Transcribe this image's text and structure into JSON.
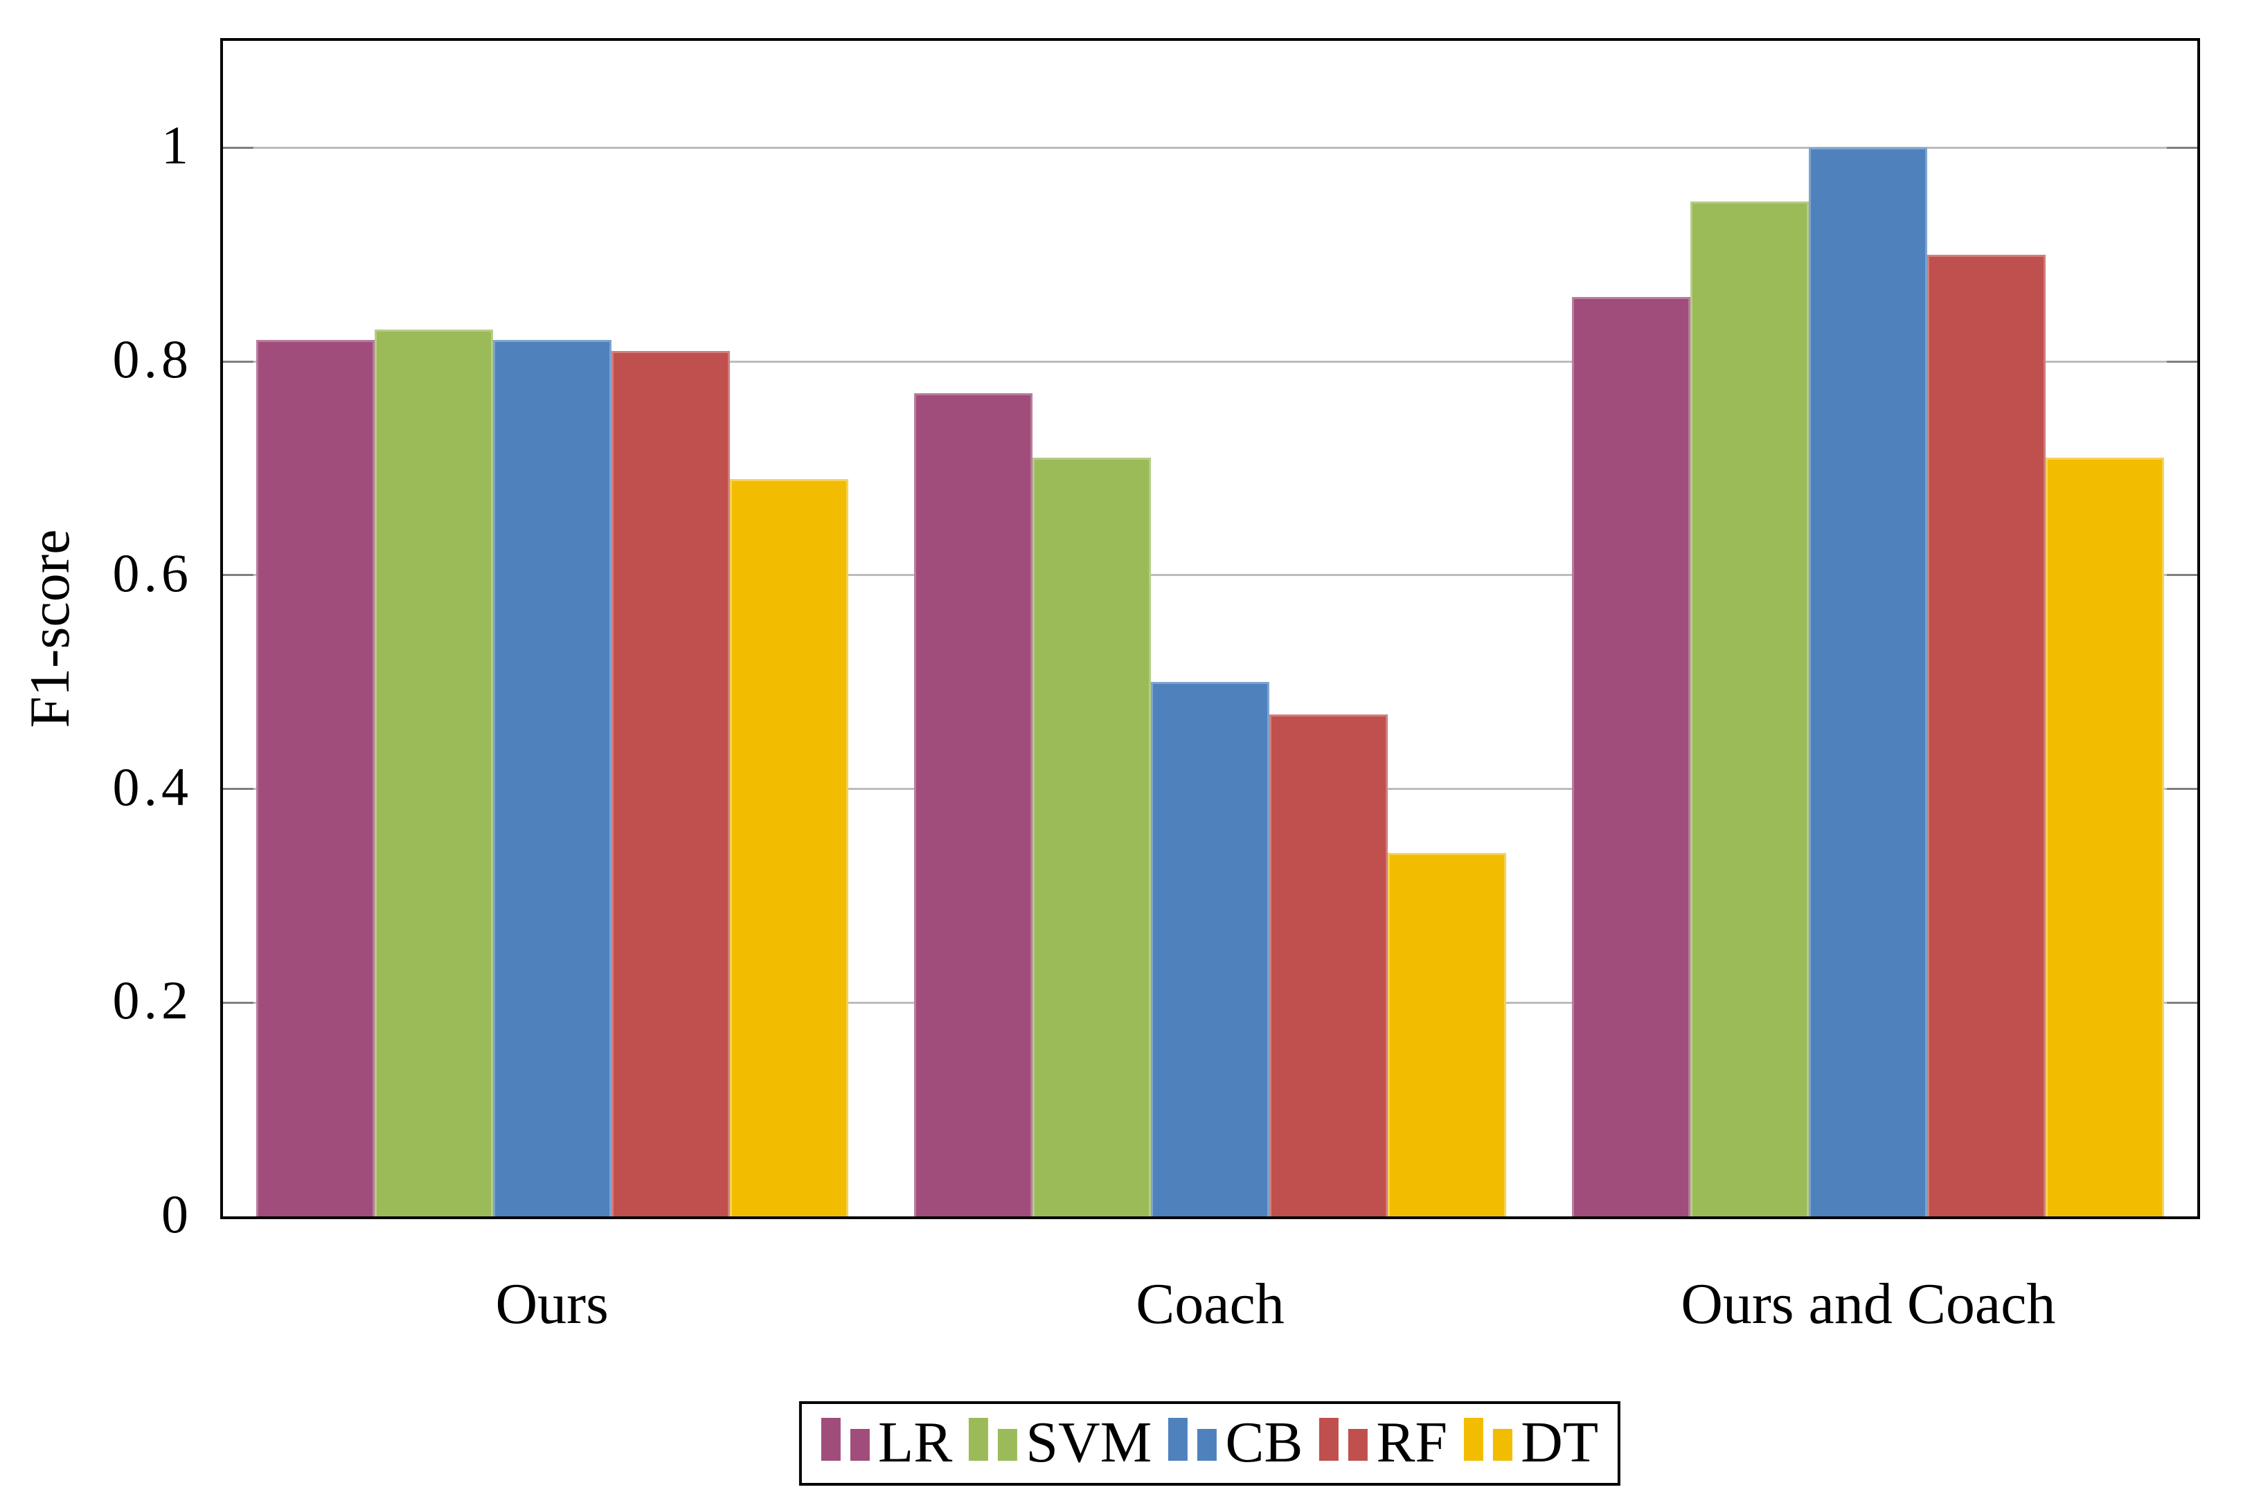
{
  "chart_data": {
    "type": "bar",
    "title": "",
    "xlabel": "",
    "ylabel": "F1-score",
    "ylim": [
      0,
      1.1
    ],
    "yticks": [
      0,
      0.2,
      0.4,
      0.6,
      0.8,
      1
    ],
    "ytick_labels": [
      "0",
      "0.2",
      "0.4",
      "0.6",
      "0.8",
      "1"
    ],
    "grid": "horizontal-on",
    "legend_position": "below-plot-centered",
    "categories": [
      "Ours",
      "Coach",
      "Ours and Coach"
    ],
    "series": [
      {
        "name": "LR",
        "color": "#a04d7c",
        "edge_color": "#b97b9e",
        "values": [
          0.82,
          0.77,
          0.86
        ]
      },
      {
        "name": "SVM",
        "color": "#9bbb59",
        "edge_color": "#b6cd85",
        "values": [
          0.83,
          0.71,
          0.95
        ]
      },
      {
        "name": "CB",
        "color": "#4f81bd",
        "edge_color": "#7da4cf",
        "values": [
          0.82,
          0.5,
          1.0
        ]
      },
      {
        "name": "RF",
        "color": "#c0504d",
        "edge_color": "#d17e7c",
        "values": [
          0.81,
          0.47,
          0.9
        ]
      },
      {
        "name": "DT",
        "color": "#f2bc00",
        "edge_color": "#f6d355",
        "values": [
          0.69,
          0.34,
          0.71
        ]
      }
    ]
  }
}
